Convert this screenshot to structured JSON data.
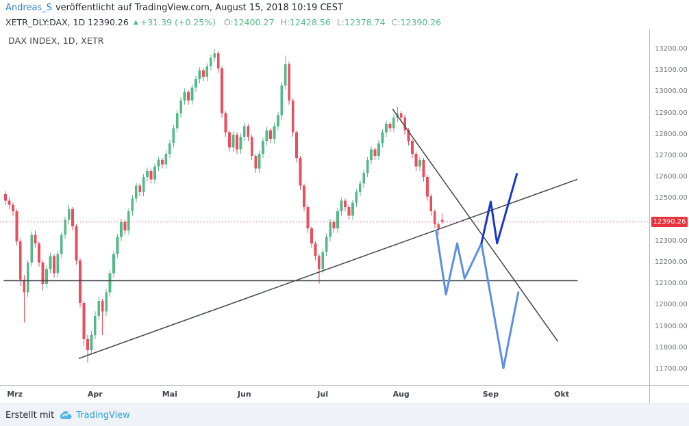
{
  "header": {
    "author": "Andreas_S",
    "publish_text": "veröffentlicht auf TradingView.com, August 15, 2018 10:19 CEST"
  },
  "symbol_bar": {
    "symbol_text": "XETR_DLY:DAX, 1D 12390.26",
    "change_arrow": "▲",
    "change_text": "+31.39 (+0.25%)",
    "ohlc": [
      {
        "label": "O:",
        "value": "12400.27"
      },
      {
        "label": "H:",
        "value": "12428.56"
      },
      {
        "label": "L:",
        "value": "12378.74"
      },
      {
        "label": "C:",
        "value": "12390.26"
      }
    ]
  },
  "chart": {
    "legend": "DAX INDEX, 1D, XETR"
  },
  "footer": {
    "created_with": "Erstellt mit",
    "brand": "TradingView"
  },
  "colors": {
    "link_blue": "#2d84d0",
    "brand_blue": "#2d9cdb",
    "logo_blue": "#56b5e4",
    "green": "#53b987",
    "candle_up": "#53b987",
    "candle_down": "#eb4d5c",
    "red_badge": "#e8333f",
    "price_line": "#eb4d5c",
    "trend_line": "#3f4248",
    "light_blue": "#5b8ee6",
    "dark_blue": "#1635cc",
    "ohlc_label_gray": "#9aa0a6"
  },
  "chart_data": {
    "type": "candlestick",
    "title": "DAX INDEX, 1D, XETR",
    "symbol": "XETR_DLY:DAX",
    "timeframe": "1D",
    "last_price": 12390.26,
    "change_text": "+31.39 (+0.25%)",
    "last_ohlc": {
      "o": 12400.27,
      "h": 12428.56,
      "l": 12378.74,
      "c": 12390.26
    },
    "grid": false,
    "legend_position": "top-left",
    "ylim": [
      11626,
      13293
    ],
    "price_ticks": [
      13200,
      13100,
      13000,
      12900,
      12800,
      12700,
      12600,
      12500,
      12400,
      12300,
      12200,
      12100,
      12000,
      11900,
      11800,
      11700
    ],
    "month_ticks": [
      {
        "label": "Mrz",
        "i": 2.5
      },
      {
        "label": "Apr",
        "i": 24
      },
      {
        "label": "Mai",
        "i": 44
      },
      {
        "label": "Jun",
        "i": 64
      },
      {
        "label": "Jul",
        "i": 85
      },
      {
        "label": "Aug",
        "i": 106
      },
      {
        "label": "Sep",
        "i": 130
      },
      {
        "label": "Okt",
        "i": 149
      }
    ],
    "candles": [
      [
        12520,
        12535,
        12470,
        12490
      ],
      [
        12490,
        12505,
        12450,
        12470
      ],
      [
        12470,
        12480,
        12420,
        12440
      ],
      [
        12440,
        12450,
        12280,
        12300
      ],
      [
        12300,
        12310,
        12090,
        12120
      ],
      [
        12120,
        12140,
        11920,
        12060
      ],
      [
        12060,
        12210,
        12040,
        12200
      ],
      [
        12200,
        12345,
        12180,
        12330
      ],
      [
        12330,
        12350,
        12270,
        12290
      ],
      [
        12290,
        12300,
        12180,
        12200
      ],
      [
        12200,
        12210,
        12070,
        12100
      ],
      [
        12100,
        12185,
        12080,
        12170
      ],
      [
        12170,
        12245,
        12150,
        12230
      ],
      [
        12230,
        12240,
        12130,
        12150
      ],
      [
        12150,
        12255,
        12130,
        12240
      ],
      [
        12240,
        12345,
        12220,
        12330
      ],
      [
        12330,
        12415,
        12310,
        12400
      ],
      [
        12400,
        12470,
        12380,
        12450
      ],
      [
        12450,
        12460,
        12350,
        12370
      ],
      [
        12370,
        12380,
        12190,
        12210
      ],
      [
        12210,
        12220,
        11990,
        12010
      ],
      [
        12010,
        12020,
        11810,
        11840
      ],
      [
        11840,
        11860,
        11730,
        11790
      ],
      [
        11790,
        11880,
        11770,
        11860
      ],
      [
        11860,
        11970,
        11840,
        11950
      ],
      [
        11950,
        12040,
        11930,
        12020
      ],
      [
        12020,
        12030,
        11860,
        11970
      ],
      [
        11970,
        12075,
        11950,
        12060
      ],
      [
        12060,
        12165,
        12040,
        12150
      ],
      [
        12150,
        12255,
        12130,
        12240
      ],
      [
        12240,
        12335,
        12220,
        12320
      ],
      [
        12320,
        12405,
        12300,
        12390
      ],
      [
        12390,
        12400,
        12330,
        12350
      ],
      [
        12350,
        12455,
        12330,
        12440
      ],
      [
        12440,
        12515,
        12420,
        12500
      ],
      [
        12500,
        12575,
        12480,
        12560
      ],
      [
        12560,
        12570,
        12510,
        12530
      ],
      [
        12530,
        12615,
        12510,
        12600
      ],
      [
        12600,
        12645,
        12580,
        12630
      ],
      [
        12630,
        12640,
        12570,
        12590
      ],
      [
        12590,
        12665,
        12570,
        12650
      ],
      [
        12650,
        12695,
        12630,
        12680
      ],
      [
        12680,
        12690,
        12640,
        12660
      ],
      [
        12660,
        12725,
        12640,
        12710
      ],
      [
        12710,
        12775,
        12690,
        12760
      ],
      [
        12760,
        12845,
        12740,
        12830
      ],
      [
        12830,
        12915,
        12810,
        12900
      ],
      [
        12900,
        12975,
        12880,
        12960
      ],
      [
        12960,
        13015,
        12940,
        13000
      ],
      [
        13000,
        13010,
        12940,
        12960
      ],
      [
        12960,
        13035,
        12940,
        13020
      ],
      [
        13020,
        13075,
        13000,
        13060
      ],
      [
        13060,
        13115,
        13040,
        13100
      ],
      [
        13100,
        13110,
        13050,
        13070
      ],
      [
        13070,
        13135,
        13050,
        13120
      ],
      [
        13120,
        13175,
        13100,
        13160
      ],
      [
        13160,
        13200,
        13140,
        13180
      ],
      [
        13180,
        13190,
        13090,
        13110
      ],
      [
        13110,
        13120,
        12880,
        12900
      ],
      [
        12900,
        12910,
        12790,
        12810
      ],
      [
        12810,
        12820,
        12720,
        12740
      ],
      [
        12740,
        12815,
        12720,
        12800
      ],
      [
        12800,
        12810,
        12710,
        12730
      ],
      [
        12730,
        12805,
        12710,
        12790
      ],
      [
        12790,
        12855,
        12770,
        12840
      ],
      [
        12840,
        12850,
        12770,
        12790
      ],
      [
        12790,
        12800,
        12680,
        12700
      ],
      [
        12700,
        12710,
        12620,
        12640
      ],
      [
        12640,
        12725,
        12620,
        12710
      ],
      [
        12710,
        12785,
        12690,
        12770
      ],
      [
        12770,
        12835,
        12750,
        12820
      ],
      [
        12820,
        12830,
        12760,
        12780
      ],
      [
        12780,
        12855,
        12760,
        12840
      ],
      [
        12840,
        12905,
        12820,
        12890
      ],
      [
        12890,
        13045,
        12870,
        13030
      ],
      [
        13030,
        13170,
        13010,
        13130
      ],
      [
        13130,
        13140,
        12940,
        12960
      ],
      [
        12960,
        12970,
        12790,
        12810
      ],
      [
        12810,
        12820,
        12670,
        12690
      ],
      [
        12690,
        12700,
        12540,
        12560
      ],
      [
        12560,
        12570,
        12440,
        12460
      ],
      [
        12460,
        12470,
        12340,
        12360
      ],
      [
        12360,
        12370,
        12270,
        12290
      ],
      [
        12290,
        12300,
        12210,
        12230
      ],
      [
        12230,
        12240,
        12100,
        12170
      ],
      [
        12170,
        12265,
        12150,
        12250
      ],
      [
        12250,
        12335,
        12230,
        12320
      ],
      [
        12320,
        12405,
        12300,
        12390
      ],
      [
        12390,
        12400,
        12340,
        12360
      ],
      [
        12360,
        12455,
        12340,
        12440
      ],
      [
        12440,
        12505,
        12420,
        12490
      ],
      [
        12490,
        12500,
        12440,
        12460
      ],
      [
        12460,
        12470,
        12400,
        12420
      ],
      [
        12420,
        12495,
        12400,
        12480
      ],
      [
        12480,
        12545,
        12460,
        12530
      ],
      [
        12530,
        12585,
        12510,
        12570
      ],
      [
        12570,
        12635,
        12550,
        12620
      ],
      [
        12620,
        12695,
        12600,
        12680
      ],
      [
        12680,
        12745,
        12660,
        12730
      ],
      [
        12730,
        12740,
        12680,
        12700
      ],
      [
        12700,
        12775,
        12680,
        12760
      ],
      [
        12760,
        12825,
        12740,
        12810
      ],
      [
        12810,
        12865,
        12790,
        12850
      ],
      [
        12850,
        12860,
        12810,
        12830
      ],
      [
        12830,
        12895,
        12810,
        12880
      ],
      [
        12880,
        12930,
        12860,
        12900
      ],
      [
        12900,
        12910,
        12860,
        12880
      ],
      [
        12880,
        12890,
        12800,
        12820
      ],
      [
        12820,
        12830,
        12750,
        12770
      ],
      [
        12770,
        12780,
        12690,
        12710
      ],
      [
        12710,
        12720,
        12630,
        12650
      ],
      [
        12650,
        12695,
        12630,
        12680
      ],
      [
        12680,
        12690,
        12580,
        12600
      ],
      [
        12600,
        12610,
        12490,
        12510
      ],
      [
        12510,
        12520,
        12420,
        12440
      ],
      [
        12440,
        12450,
        12360,
        12380
      ],
      [
        12380,
        12390,
        12330,
        12360
      ],
      [
        12400.27,
        12428.56,
        12378.74,
        12390.26
      ]
    ],
    "trend_lines": [
      {
        "name": "descending-resistance",
        "i1": 103.7,
        "p1": 12920,
        "i2": 148,
        "p2": 11830
      },
      {
        "name": "ascending-support",
        "i1": 19.6,
        "p1": 11750,
        "i2": 153.2,
        "p2": 12590
      },
      {
        "name": "horizontal-support",
        "i1": -0.5,
        "p1": 12115,
        "i2": 153.3,
        "p2": 12115
      }
    ],
    "projections": [
      {
        "name": "bearish-scenario",
        "color": "light_blue",
        "points": [
          [
            115.4,
            12350
          ],
          [
            118,
            12050
          ],
          [
            121,
            12290
          ],
          [
            123,
            12125
          ],
          [
            127.5,
            12290
          ],
          [
            133.4,
            11705
          ],
          [
            137.4,
            12060
          ]
        ]
      },
      {
        "name": "bullish-scenario",
        "color": "dark_blue",
        "points": [
          [
            127.5,
            12290
          ],
          [
            130,
            12485
          ],
          [
            131.7,
            12290
          ],
          [
            137,
            12615
          ]
        ]
      }
    ],
    "price_line": 12390.26
  }
}
